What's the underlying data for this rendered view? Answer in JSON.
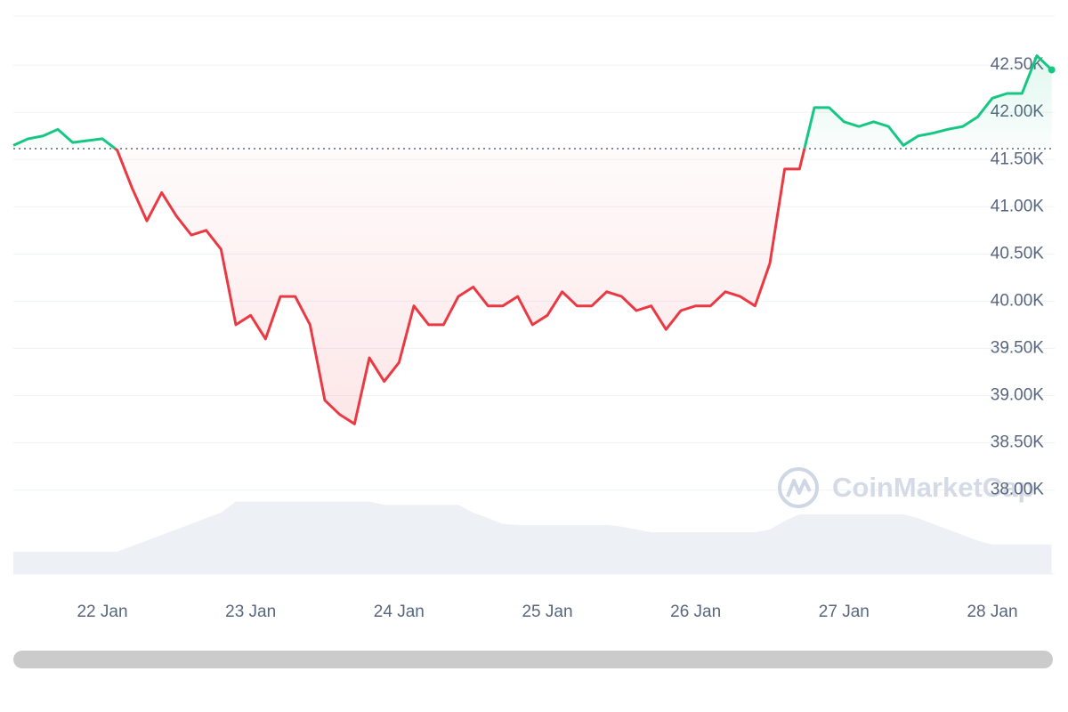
{
  "chart_data": {
    "type": "line",
    "watermark": "CoinMarketCap",
    "x": [
      21.4,
      21.5,
      21.6,
      21.7,
      21.8,
      21.9,
      22.0,
      22.1,
      22.2,
      22.3,
      22.4,
      22.5,
      22.6,
      22.7,
      22.8,
      22.9,
      23.0,
      23.1,
      23.2,
      23.3,
      23.4,
      23.5,
      23.6,
      23.7,
      23.8,
      23.9,
      24.0,
      24.1,
      24.2,
      24.3,
      24.4,
      24.5,
      24.6,
      24.7,
      24.8,
      24.9,
      25.0,
      25.1,
      25.2,
      25.3,
      25.4,
      25.5,
      25.6,
      25.7,
      25.8,
      25.9,
      26.0,
      26.1,
      26.2,
      26.3,
      26.4,
      26.5,
      26.6,
      26.7,
      26.8,
      26.9,
      27.0,
      27.1,
      27.2,
      27.3,
      27.4,
      27.5,
      27.6,
      27.7,
      27.8,
      27.9,
      28.0,
      28.1,
      28.2,
      28.3,
      28.4
    ],
    "values": [
      41650,
      41720,
      41750,
      41820,
      41680,
      41700,
      41720,
      41600,
      41200,
      40850,
      41150,
      40900,
      40700,
      40750,
      40550,
      39750,
      39850,
      39600,
      40050,
      40050,
      39750,
      38950,
      38800,
      38700,
      39400,
      39150,
      39350,
      39950,
      39750,
      39750,
      40050,
      40150,
      39950,
      39950,
      40050,
      39750,
      39850,
      40100,
      39950,
      39950,
      40100,
      40050,
      39900,
      39950,
      39700,
      39900,
      39950,
      39950,
      40100,
      40050,
      39950,
      40400,
      41400,
      41400,
      42050,
      42050,
      41900,
      41850,
      41900,
      41850,
      41650,
      41750,
      41780,
      41820,
      41850,
      41950,
      42150,
      42200,
      42200,
      42600,
      42450
    ],
    "baseline": 41615,
    "up_color": "#16c784",
    "down_color": "#ea3943",
    "volume": {
      "color": "#edf0f4",
      "y2lim": [
        0,
        100
      ],
      "values": [
        4,
        4,
        4,
        4,
        4,
        4,
        4,
        4,
        5,
        6,
        7,
        8,
        9,
        10,
        11,
        13,
        13,
        13,
        13,
        13,
        13,
        13,
        13,
        13,
        13,
        12.4,
        12.4,
        12.4,
        12.4,
        12.4,
        12.4,
        11,
        10,
        9,
        8.8,
        8.8,
        8.8,
        8.8,
        8.8,
        8.8,
        8.8,
        8.5,
        8,
        7.5,
        7.5,
        7.5,
        7.5,
        7.5,
        7.5,
        7.5,
        7.5,
        8,
        9.5,
        10.7,
        10.7,
        10.7,
        10.7,
        10.7,
        10.7,
        10.7,
        10.7,
        10,
        9,
        8,
        7,
        6,
        5.3,
        5.3,
        5.3,
        5.3,
        5.3
      ]
    },
    "xlim": [
      21.4,
      28.42
    ],
    "xticks": [
      {
        "value": 22,
        "label": "22 Jan"
      },
      {
        "value": 23,
        "label": "23 Jan"
      },
      {
        "value": 24,
        "label": "24 Jan"
      },
      {
        "value": 25,
        "label": "25 Jan"
      },
      {
        "value": 26,
        "label": "26 Jan"
      },
      {
        "value": 27,
        "label": "27 Jan"
      },
      {
        "value": 28,
        "label": "28 Jan"
      }
    ],
    "ylim": [
      37110,
      43020
    ],
    "yticks": [
      {
        "value": 38000,
        "label": "38.00K"
      },
      {
        "value": 38500,
        "label": "38.50K"
      },
      {
        "value": 39000,
        "label": "39.00K"
      },
      {
        "value": 39500,
        "label": "39.50K"
      },
      {
        "value": 40000,
        "label": "40.00K"
      },
      {
        "value": 40500,
        "label": "40.50K"
      },
      {
        "value": 41000,
        "label": "41.00K"
      },
      {
        "value": 41500,
        "label": "41.50K"
      },
      {
        "value": 42000,
        "label": "42.00K"
      },
      {
        "value": 42500,
        "label": "42.50K"
      }
    ],
    "grid": true
  }
}
